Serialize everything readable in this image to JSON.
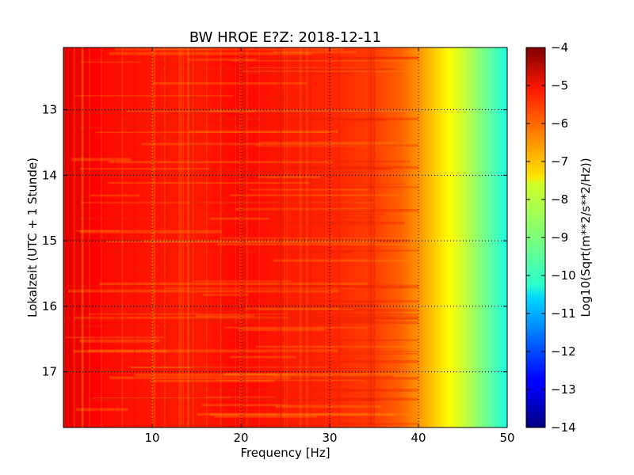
{
  "chart_data": {
    "type": "heatmap",
    "title": "BW HROE E?Z: 2018-12-11",
    "xlabel": "Frequency [Hz]",
    "ylabel": "Lokalzeit (UTC + 1 Stunde)",
    "xlim": [
      0,
      50
    ],
    "ylim": [
      17.85,
      12.05
    ],
    "x_ticks": [
      10,
      20,
      30,
      40,
      50
    ],
    "x_tick_labels": [
      "10",
      "20",
      "30",
      "40",
      "50"
    ],
    "y_ticks": [
      13,
      14,
      15,
      16,
      17
    ],
    "y_tick_labels": [
      "13",
      "14",
      "15",
      "16",
      "17"
    ],
    "grid": true,
    "grid_style": "dotted",
    "colorbar": {
      "label": "Log10(Sqrt(m**2/s**2/Hz))",
      "min": -14,
      "max": -4,
      "ticks": [
        -4,
        -5,
        -6,
        -7,
        -8,
        -9,
        -10,
        -11,
        -12,
        -13,
        -14
      ],
      "tick_labels": [
        "−4",
        "−5",
        "−6",
        "−7",
        "−8",
        "−9",
        "−10",
        "−11",
        "−12",
        "−13",
        "−14"
      ],
      "colormap": "jet"
    },
    "spectral_profile": {
      "frequency_hz": [
        0,
        2,
        5,
        10,
        15,
        20,
        25,
        30,
        35,
        38,
        40,
        42,
        44,
        46,
        48,
        50
      ],
      "log10_amplitude": [
        -5.0,
        -5.1,
        -5.35,
        -5.45,
        -5.5,
        -5.3,
        -5.5,
        -5.6,
        -5.85,
        -6.2,
        -6.7,
        -7.3,
        -7.9,
        -8.6,
        -9.3,
        -10.0
      ]
    },
    "notes_bands": []
  }
}
